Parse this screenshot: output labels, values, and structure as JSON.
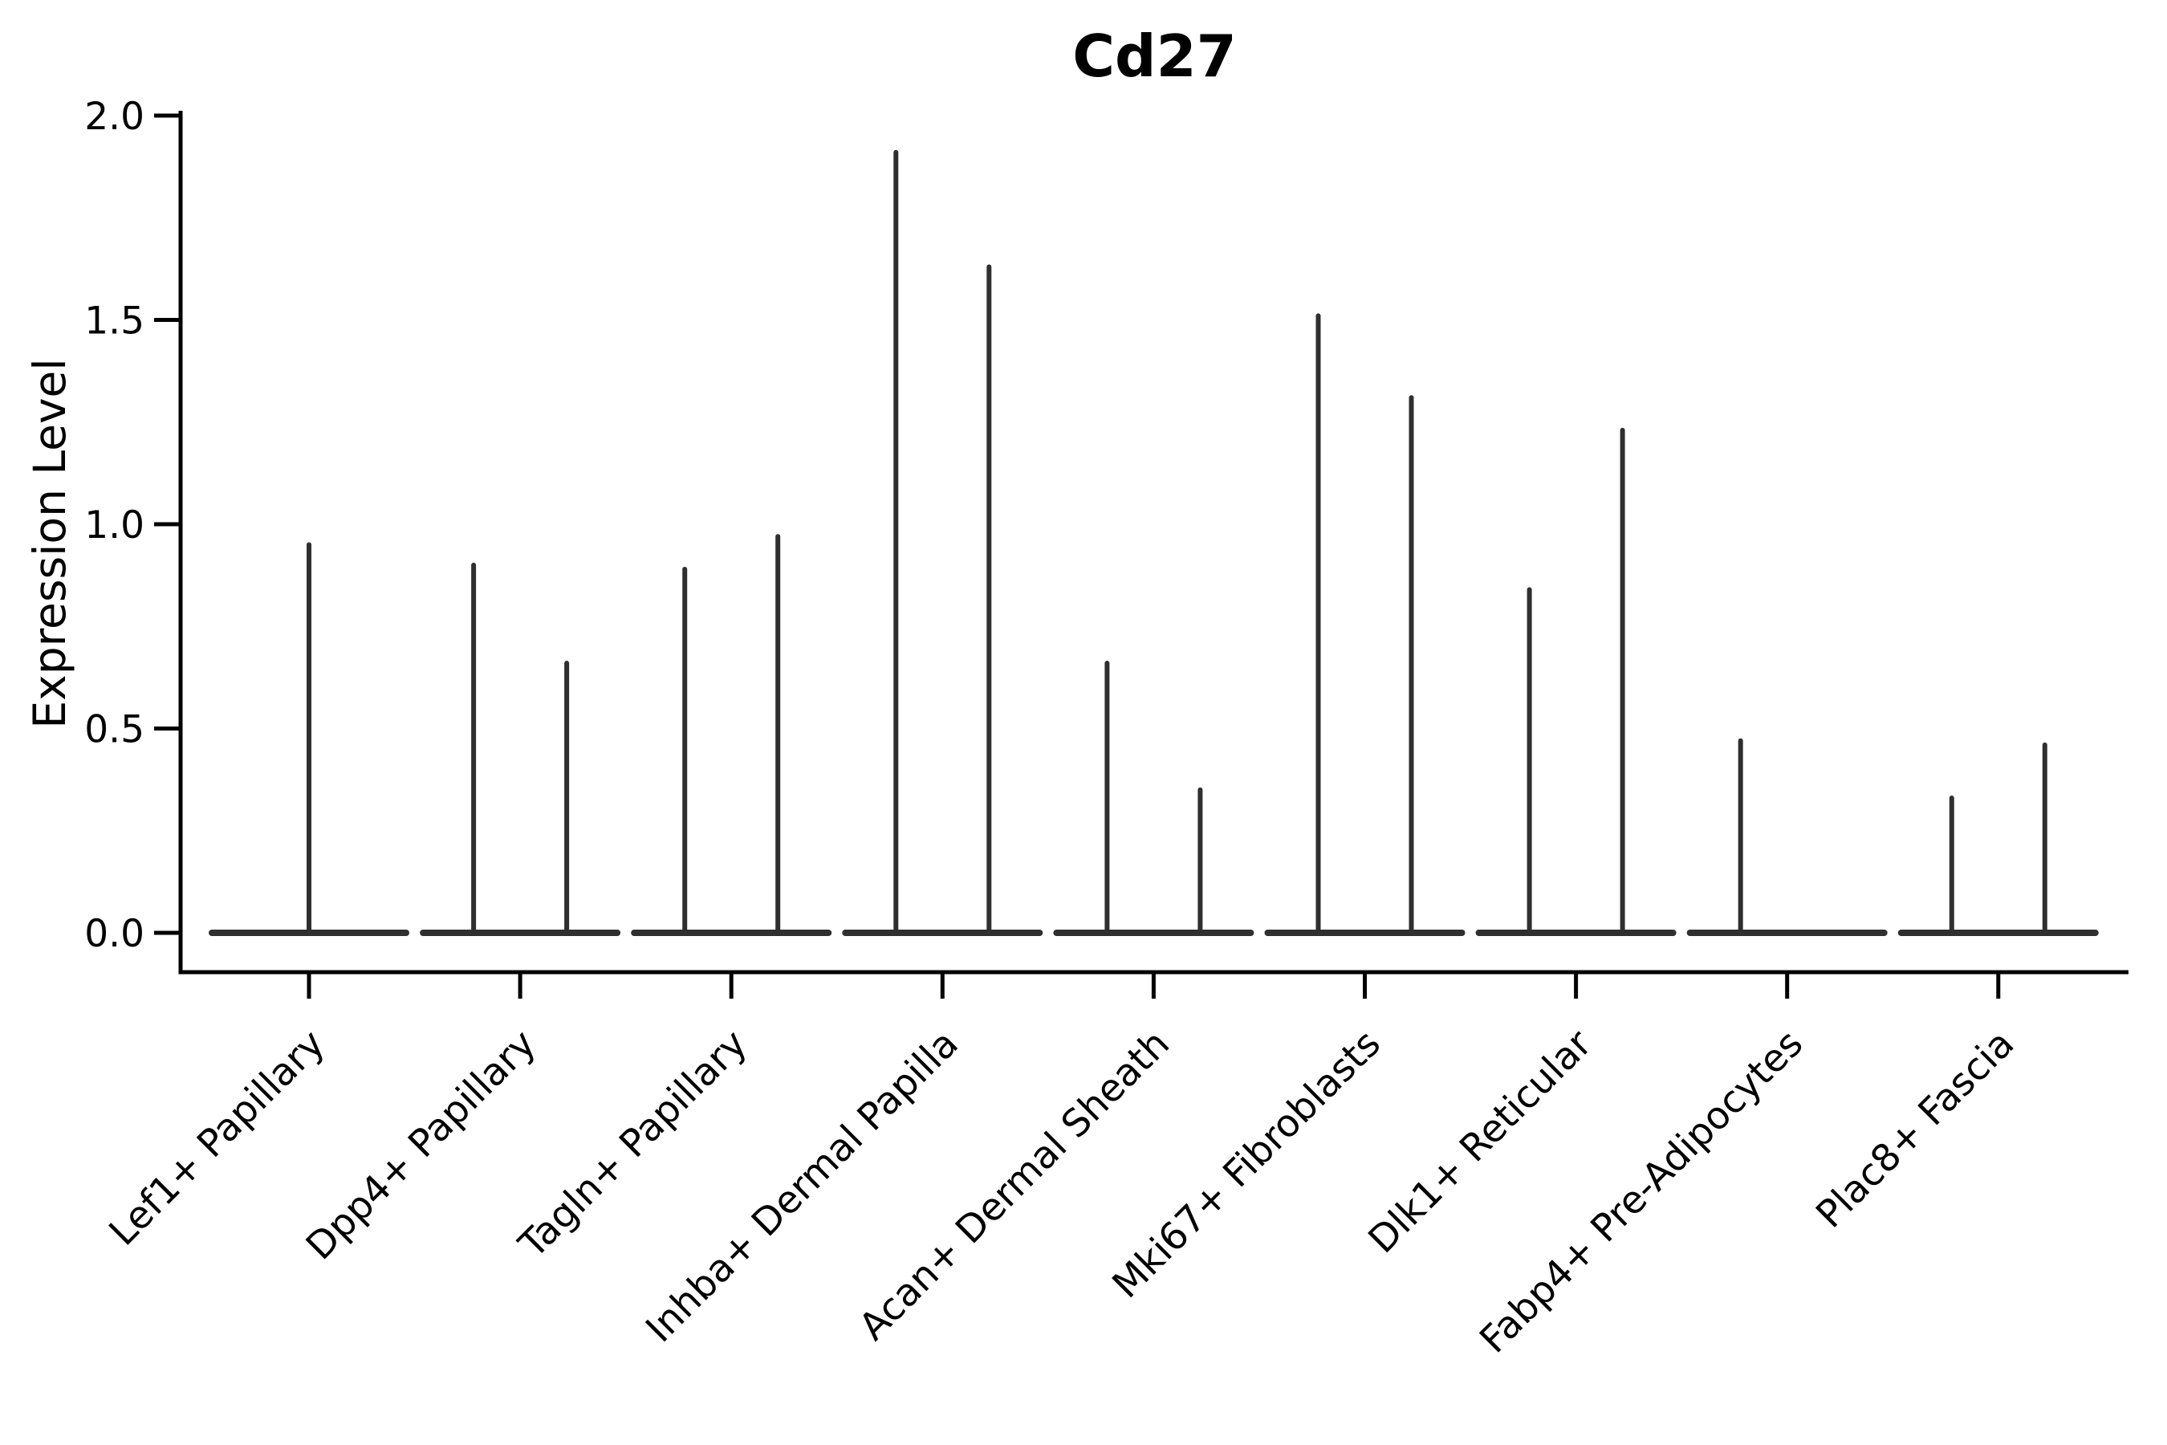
{
  "title": "Cd27",
  "y_axis": {
    "label": "Expression Level",
    "ticks": [
      {
        "label": "2.0",
        "value": 2.0
      },
      {
        "label": "1.5",
        "value": 1.5
      },
      {
        "label": "1.0",
        "value": 1.0
      },
      {
        "label": "0.5",
        "value": 0.5
      },
      {
        "label": "0.0",
        "value": 0.0
      }
    ],
    "range": [
      0.0,
      2.0
    ]
  },
  "categories": [
    "Lef1+ Papillary",
    "Dpp4+ Papillary",
    "Tagln+ Papillary",
    "Inhba+ Dermal Papilla",
    "Acan+ Dermal Sheath",
    "Mki67+ Fibroblasts",
    "Dlk1+ Reticular",
    "Fabp4+ Pre-Adipocytes",
    "Plac8+ Fascia"
  ],
  "chart_data": {
    "type": "violin",
    "title": "Cd27",
    "xlabel": "",
    "ylabel": "Expression Level",
    "ylim": [
      0.0,
      2.0
    ],
    "grid": false,
    "legend": "none",
    "categories": [
      "Lef1+ Papillary",
      "Dpp4+ Papillary",
      "Tagln+ Papillary",
      "Inhba+ Dermal Papilla",
      "Acan+ Dermal Sheath",
      "Mki67+ Fibroblasts",
      "Dlk1+ Reticular",
      "Fabp4+ Pre-Adipocytes",
      "Plac8+ Fascia"
    ],
    "violins": [
      {
        "category": "Lef1+ Papillary",
        "spikes": [
          {
            "position": "center",
            "max": 0.95
          }
        ]
      },
      {
        "category": "Dpp4+ Papillary",
        "spikes": [
          {
            "position": "left",
            "max": 0.9
          },
          {
            "position": "right",
            "max": 0.66
          }
        ]
      },
      {
        "category": "Tagln+ Papillary",
        "spikes": [
          {
            "position": "left",
            "max": 0.89
          },
          {
            "position": "right",
            "max": 0.97
          }
        ]
      },
      {
        "category": "Inhba+ Dermal Papilla",
        "spikes": [
          {
            "position": "left",
            "max": 1.91
          },
          {
            "position": "right",
            "max": 1.63
          }
        ]
      },
      {
        "category": "Acan+ Dermal Sheath",
        "spikes": [
          {
            "position": "left",
            "max": 0.66
          },
          {
            "position": "right",
            "max": 0.35
          }
        ]
      },
      {
        "category": "Mki67+ Fibroblasts",
        "spikes": [
          {
            "position": "left",
            "max": 1.51
          },
          {
            "position": "right",
            "max": 1.31
          }
        ]
      },
      {
        "category": "Dlk1+ Reticular",
        "spikes": [
          {
            "position": "left",
            "max": 0.84
          },
          {
            "position": "right",
            "max": 1.23
          }
        ]
      },
      {
        "category": "Fabp4+ Pre-Adipocytes",
        "spikes": [
          {
            "position": "left",
            "max": 0.47
          }
        ]
      },
      {
        "category": "Plac8+ Fascia",
        "spikes": [
          {
            "position": "left",
            "max": 0.33
          },
          {
            "position": "right",
            "max": 0.46
          }
        ]
      }
    ],
    "style": {
      "violin_line_color": "#2f2f2f",
      "axis_color": "#000000",
      "background": "#ffffff"
    }
  }
}
